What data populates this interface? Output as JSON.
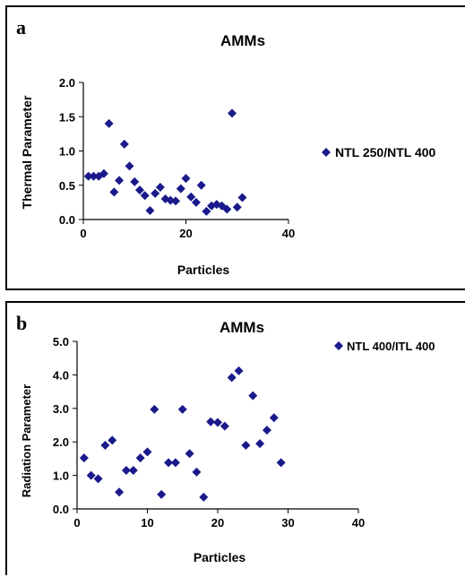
{
  "chart_data": [
    {
      "type": "scatter",
      "panel_label": "a",
      "title": "AMMs",
      "xlabel": "Particles",
      "ylabel": "Thermal Parameter",
      "xlim": [
        0,
        40
      ],
      "ylim": [
        0,
        2.0
      ],
      "xticks": [
        "0",
        "20",
        "40"
      ],
      "yticks": [
        "0.0",
        "0.5",
        "1.0",
        "1.5",
        "2.0"
      ],
      "legend_position": "right",
      "marker_color": "#1a1a8c",
      "series": [
        {
          "name": "NTL 250/NTL 400",
          "x": [
            1,
            2,
            3,
            4,
            5,
            6,
            7,
            8,
            9,
            10,
            11,
            12,
            13,
            14,
            15,
            16,
            17,
            18,
            19,
            20,
            21,
            22,
            23,
            24,
            25,
            26,
            27,
            28,
            29,
            30,
            31
          ],
          "y": [
            0.63,
            0.63,
            0.63,
            0.67,
            1.4,
            0.4,
            0.57,
            1.1,
            0.78,
            0.55,
            0.43,
            0.35,
            0.13,
            0.38,
            0.47,
            0.3,
            0.28,
            0.27,
            0.45,
            0.6,
            0.33,
            0.25,
            0.5,
            0.12,
            0.2,
            0.22,
            0.2,
            0.15,
            1.55,
            0.18,
            0.32
          ]
        }
      ]
    },
    {
      "type": "scatter",
      "panel_label": "b",
      "title": "AMMs",
      "xlabel": "Particles",
      "ylabel": "Radiation Parameter",
      "xlim": [
        0,
        40
      ],
      "ylim": [
        0,
        5.0
      ],
      "xticks": [
        "0",
        "10",
        "20",
        "30",
        "40"
      ],
      "yticks": [
        "0.0",
        "1.0",
        "2.0",
        "3.0",
        "4.0",
        "5.0"
      ],
      "legend_position": "top-right",
      "marker_color": "#1a1a8c",
      "series": [
        {
          "name": "NTL 400/ITL 400",
          "x": [
            1,
            2,
            3,
            4,
            5,
            6,
            7,
            8,
            9,
            10,
            11,
            12,
            13,
            14,
            15,
            16,
            17,
            18,
            19,
            20,
            21,
            22,
            23,
            24,
            25,
            26,
            27,
            28,
            29
          ],
          "y": [
            1.52,
            1.0,
            0.9,
            1.9,
            2.05,
            0.5,
            1.15,
            1.15,
            1.52,
            1.7,
            2.97,
            0.43,
            1.38,
            1.38,
            2.97,
            1.65,
            1.1,
            0.35,
            2.6,
            2.58,
            2.47,
            3.92,
            4.12,
            1.9,
            3.38,
            1.95,
            2.35,
            2.72,
            1.38
          ]
        }
      ]
    }
  ]
}
